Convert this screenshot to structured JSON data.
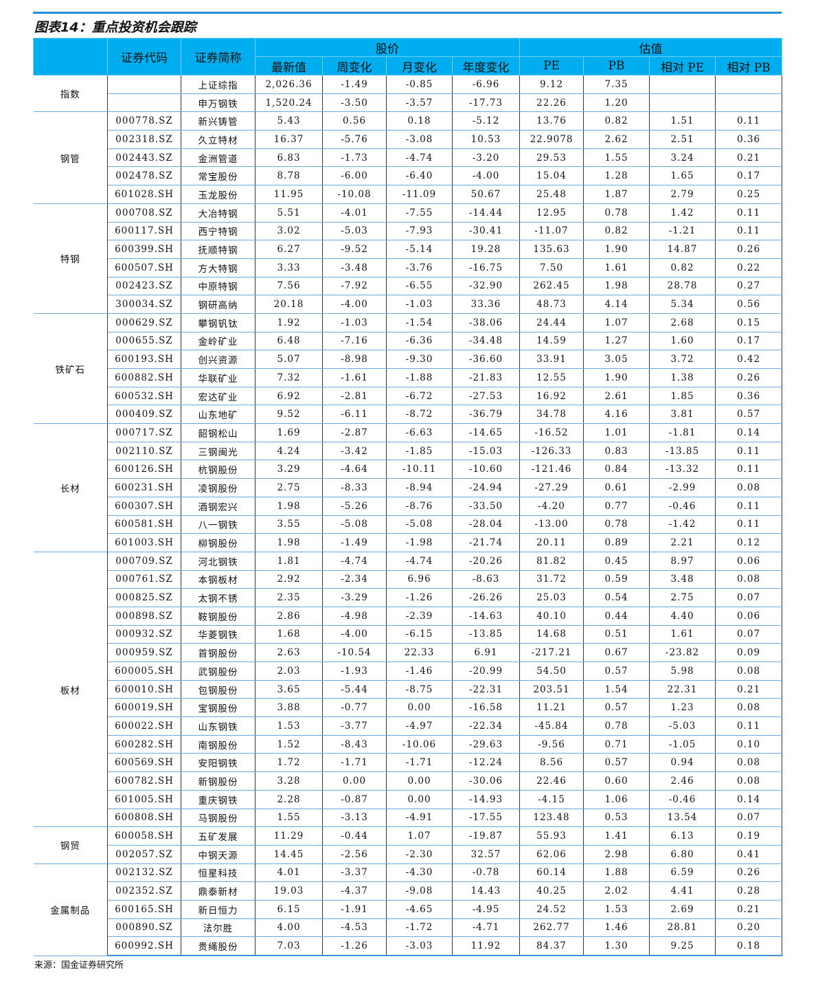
{
  "title": "图表14：重点投资机会跟踪",
  "headers": {
    "code": "证券代码",
    "name": "证券简称",
    "price_group": "股价",
    "valuation_group": "估值",
    "cols": [
      "最新值",
      "周变化",
      "月变化",
      "年度变化",
      "PE",
      "PB",
      "相对 PE",
      "相对 PB"
    ]
  },
  "groups": [
    {
      "name": "指数",
      "rows": [
        [
          "",
          "上证综指",
          "2,026.36",
          "-1.49",
          "-0.85",
          "-6.96",
          "9.12",
          "7.35",
          "",
          ""
        ],
        [
          "",
          "申万钢铁",
          "1,520.24",
          "-3.50",
          "-3.57",
          "-17.73",
          "22.26",
          "1.20",
          "",
          ""
        ]
      ]
    },
    {
      "name": "钢管",
      "rows": [
        [
          "000778.SZ",
          "新兴铸管",
          "5.43",
          "0.56",
          "0.18",
          "-5.12",
          "13.76",
          "0.82",
          "1.51",
          "0.11"
        ],
        [
          "002318.SZ",
          "久立特材",
          "16.37",
          "-5.76",
          "-3.08",
          "10.53",
          "22.9078",
          "2.62",
          "2.51",
          "0.36"
        ],
        [
          "002443.SZ",
          "金洲管道",
          "6.83",
          "-1.73",
          "-4.74",
          "-3.20",
          "29.53",
          "1.55",
          "3.24",
          "0.21"
        ],
        [
          "002478.SZ",
          "常宝股份",
          "8.78",
          "-6.00",
          "-6.40",
          "-4.00",
          "15.04",
          "1.28",
          "1.65",
          "0.17"
        ],
        [
          "601028.SH",
          "玉龙股份",
          "11.95",
          "-10.08",
          "-11.09",
          "50.67",
          "25.48",
          "1.87",
          "2.79",
          "0.25"
        ]
      ]
    },
    {
      "name": "特钢",
      "rows": [
        [
          "000708.SZ",
          "大冶特钢",
          "5.51",
          "-4.01",
          "-7.55",
          "-14.44",
          "12.95",
          "0.78",
          "1.42",
          "0.11"
        ],
        [
          "600117.SH",
          "西宁特钢",
          "3.02",
          "-5.03",
          "-7.93",
          "-30.41",
          "-11.07",
          "0.82",
          "-1.21",
          "0.11"
        ],
        [
          "600399.SH",
          "抚顺特钢",
          "6.27",
          "-9.52",
          "-5.14",
          "19.28",
          "135.63",
          "1.90",
          "14.87",
          "0.26"
        ],
        [
          "600507.SH",
          "方大特钢",
          "3.33",
          "-3.48",
          "-3.76",
          "-16.75",
          "7.50",
          "1.61",
          "0.82",
          "0.22"
        ],
        [
          "002423.SZ",
          "中原特钢",
          "7.56",
          "-7.92",
          "-6.55",
          "-32.90",
          "262.45",
          "1.98",
          "28.78",
          "0.27"
        ],
        [
          "300034.SZ",
          "钢研高纳",
          "20.18",
          "-4.00",
          "-1.03",
          "33.36",
          "48.73",
          "4.14",
          "5.34",
          "0.56"
        ]
      ]
    },
    {
      "name": "铁矿石",
      "rows": [
        [
          "000629.SZ",
          "攀钢钒钛",
          "1.92",
          "-1.03",
          "-1.54",
          "-38.06",
          "24.44",
          "1.07",
          "2.68",
          "0.15"
        ],
        [
          "000655.SZ",
          "金岭矿业",
          "6.48",
          "-7.16",
          "-6.36",
          "-34.48",
          "14.59",
          "1.27",
          "1.60",
          "0.17"
        ],
        [
          "600193.SH",
          "创兴资源",
          "5.07",
          "-8.98",
          "-9.30",
          "-36.60",
          "33.91",
          "3.05",
          "3.72",
          "0.42"
        ],
        [
          "600882.SH",
          "华联矿业",
          "7.32",
          "-1.61",
          "-1.88",
          "-21.83",
          "12.55",
          "1.90",
          "1.38",
          "0.26"
        ],
        [
          "600532.SH",
          "宏达矿业",
          "6.92",
          "-2.81",
          "-6.72",
          "-27.53",
          "16.92",
          "2.61",
          "1.85",
          "0.36"
        ],
        [
          "000409.SZ",
          "山东地矿",
          "9.52",
          "-6.11",
          "-8.72",
          "-36.79",
          "34.78",
          "4.16",
          "3.81",
          "0.57"
        ]
      ]
    },
    {
      "name": "长材",
      "rows": [
        [
          "000717.SZ",
          "韶钢松山",
          "1.69",
          "-2.87",
          "-6.63",
          "-14.65",
          "-16.52",
          "1.01",
          "-1.81",
          "0.14"
        ],
        [
          "002110.SZ",
          "三钢闽光",
          "4.24",
          "-3.42",
          "-1.85",
          "-15.03",
          "-126.33",
          "0.83",
          "-13.85",
          "0.11"
        ],
        [
          "600126.SH",
          "杭钢股份",
          "3.29",
          "-4.64",
          "-10.11",
          "-10.60",
          "-121.46",
          "0.84",
          "-13.32",
          "0.11"
        ],
        [
          "600231.SH",
          "凌钢股份",
          "2.75",
          "-8.33",
          "-8.94",
          "-24.94",
          "-27.29",
          "0.61",
          "-2.99",
          "0.08"
        ],
        [
          "600307.SH",
          "酒钢宏兴",
          "1.98",
          "-5.26",
          "-8.76",
          "-33.50",
          "-4.20",
          "0.77",
          "-0.46",
          "0.11"
        ],
        [
          "600581.SH",
          "八一钢铁",
          "3.55",
          "-5.08",
          "-5.08",
          "-28.04",
          "-13.00",
          "0.78",
          "-1.42",
          "0.11"
        ],
        [
          "601003.SH",
          "柳钢股份",
          "1.98",
          "-1.49",
          "-1.98",
          "-21.74",
          "20.11",
          "0.89",
          "2.21",
          "0.12"
        ]
      ]
    },
    {
      "name": "板材",
      "rows": [
        [
          "000709.SZ",
          "河北钢铁",
          "1.81",
          "-4.74",
          "-4.74",
          "-20.26",
          "81.82",
          "0.45",
          "8.97",
          "0.06"
        ],
        [
          "000761.SZ",
          "本钢板材",
          "2.92",
          "-2.34",
          "6.96",
          "-8.63",
          "31.72",
          "0.59",
          "3.48",
          "0.08"
        ],
        [
          "000825.SZ",
          "太钢不锈",
          "2.35",
          "-3.29",
          "-1.26",
          "-26.26",
          "25.03",
          "0.54",
          "2.75",
          "0.07"
        ],
        [
          "000898.SZ",
          "鞍钢股份",
          "2.86",
          "-4.98",
          "-2.39",
          "-14.63",
          "40.10",
          "0.44",
          "4.40",
          "0.06"
        ],
        [
          "000932.SZ",
          "华菱钢铁",
          "1.68",
          "-4.00",
          "-6.15",
          "-13.85",
          "14.68",
          "0.51",
          "1.61",
          "0.07"
        ],
        [
          "000959.SZ",
          "首钢股份",
          "2.63",
          "-10.54",
          "22.33",
          "6.91",
          "-217.21",
          "0.67",
          "-23.82",
          "0.09"
        ],
        [
          "600005.SH",
          "武钢股份",
          "2.03",
          "-1.93",
          "-1.46",
          "-20.99",
          "54.50",
          "0.57",
          "5.98",
          "0.08"
        ],
        [
          "600010.SH",
          "包钢股份",
          "3.65",
          "-5.44",
          "-8.75",
          "-22.31",
          "203.51",
          "1.54",
          "22.31",
          "0.21"
        ],
        [
          "600019.SH",
          "宝钢股份",
          "3.88",
          "-0.77",
          "0.00",
          "-16.58",
          "11.21",
          "0.57",
          "1.23",
          "0.08"
        ],
        [
          "600022.SH",
          "山东钢铁",
          "1.53",
          "-3.77",
          "-4.97",
          "-22.34",
          "-45.84",
          "0.78",
          "-5.03",
          "0.11"
        ],
        [
          "600282.SH",
          "南钢股份",
          "1.52",
          "-8.43",
          "-10.06",
          "-29.63",
          "-9.56",
          "0.71",
          "-1.05",
          "0.10"
        ],
        [
          "600569.SH",
          "安阳钢铁",
          "1.72",
          "-1.71",
          "-1.71",
          "-12.24",
          "8.56",
          "0.57",
          "0.94",
          "0.08"
        ],
        [
          "600782.SH",
          "新钢股份",
          "3.28",
          "0.00",
          "0.00",
          "-30.06",
          "22.46",
          "0.60",
          "2.46",
          "0.08"
        ],
        [
          "601005.SH",
          "重庆钢铁",
          "2.28",
          "-0.87",
          "0.00",
          "-14.93",
          "-4.15",
          "1.06",
          "-0.46",
          "0.14"
        ],
        [
          "600808.SH",
          "马钢股份",
          "1.55",
          "-3.13",
          "-4.91",
          "-17.55",
          "123.48",
          "0.53",
          "13.54",
          "0.07"
        ]
      ]
    },
    {
      "name": "钢贸",
      "rows": [
        [
          "600058.SH",
          "五矿发展",
          "11.29",
          "-0.44",
          "1.07",
          "-19.87",
          "55.93",
          "1.41",
          "6.13",
          "0.19"
        ],
        [
          "002057.SZ",
          "中钢天源",
          "14.45",
          "-2.56",
          "-2.30",
          "32.57",
          "62.06",
          "2.98",
          "6.80",
          "0.41"
        ]
      ]
    },
    {
      "name": "金属制品",
      "rows": [
        [
          "002132.SZ",
          "恒星科技",
          "4.01",
          "-3.37",
          "-4.30",
          "-0.78",
          "60.14",
          "1.88",
          "6.59",
          "0.26"
        ],
        [
          "002352.SZ",
          "鼎泰新材",
          "19.03",
          "-4.37",
          "-9.08",
          "14.43",
          "40.25",
          "2.02",
          "4.41",
          "0.28"
        ],
        [
          "600165.SH",
          "新日恒力",
          "6.15",
          "-1.91",
          "-4.65",
          "-4.95",
          "24.52",
          "1.53",
          "2.69",
          "0.21"
        ],
        [
          "000890.SZ",
          "法尔胜",
          "4.00",
          "-4.53",
          "-1.72",
          "-4.71",
          "262.77",
          "1.46",
          "28.81",
          "0.20"
        ],
        [
          "600992.SH",
          "贵绳股份",
          "7.03",
          "-1.26",
          "-3.03",
          "11.92",
          "84.37",
          "1.30",
          "9.25",
          "0.18"
        ]
      ]
    }
  ],
  "source": "来源：国金证券研究所"
}
